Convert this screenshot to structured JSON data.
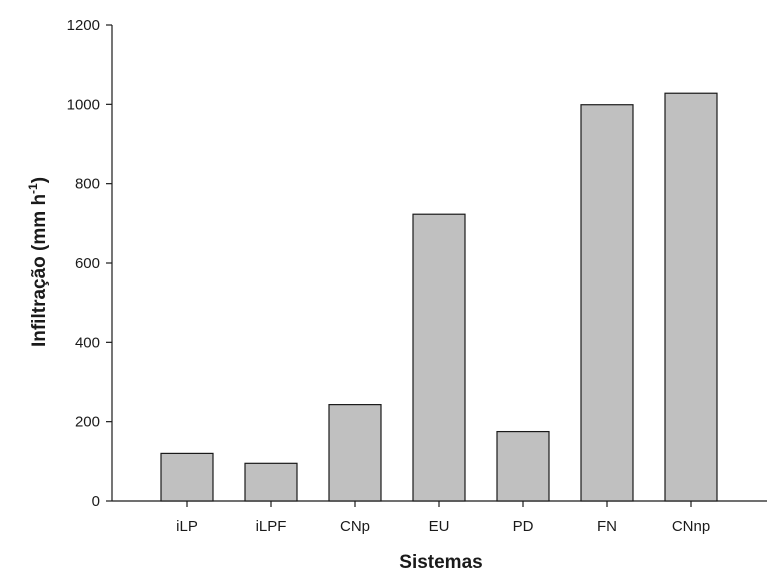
{
  "chart_data": {
    "type": "bar",
    "categories": [
      "iLP",
      "iLPF",
      "CNp",
      "EU",
      "PD",
      "FN",
      "CNnp"
    ],
    "values": [
      120,
      95,
      243,
      723,
      175,
      999,
      1028
    ],
    "xlabel": "Sistemas",
    "ylabel_main": "Infiltração (mm h",
    "ylabel_sup": "-1",
    "ylabel_close": ")",
    "ylim": [
      0,
      1200
    ],
    "yticks": [
      0,
      200,
      400,
      600,
      800,
      1000,
      1200
    ],
    "bar_color": "#c0c0c0",
    "grid": false,
    "legend": "none"
  }
}
